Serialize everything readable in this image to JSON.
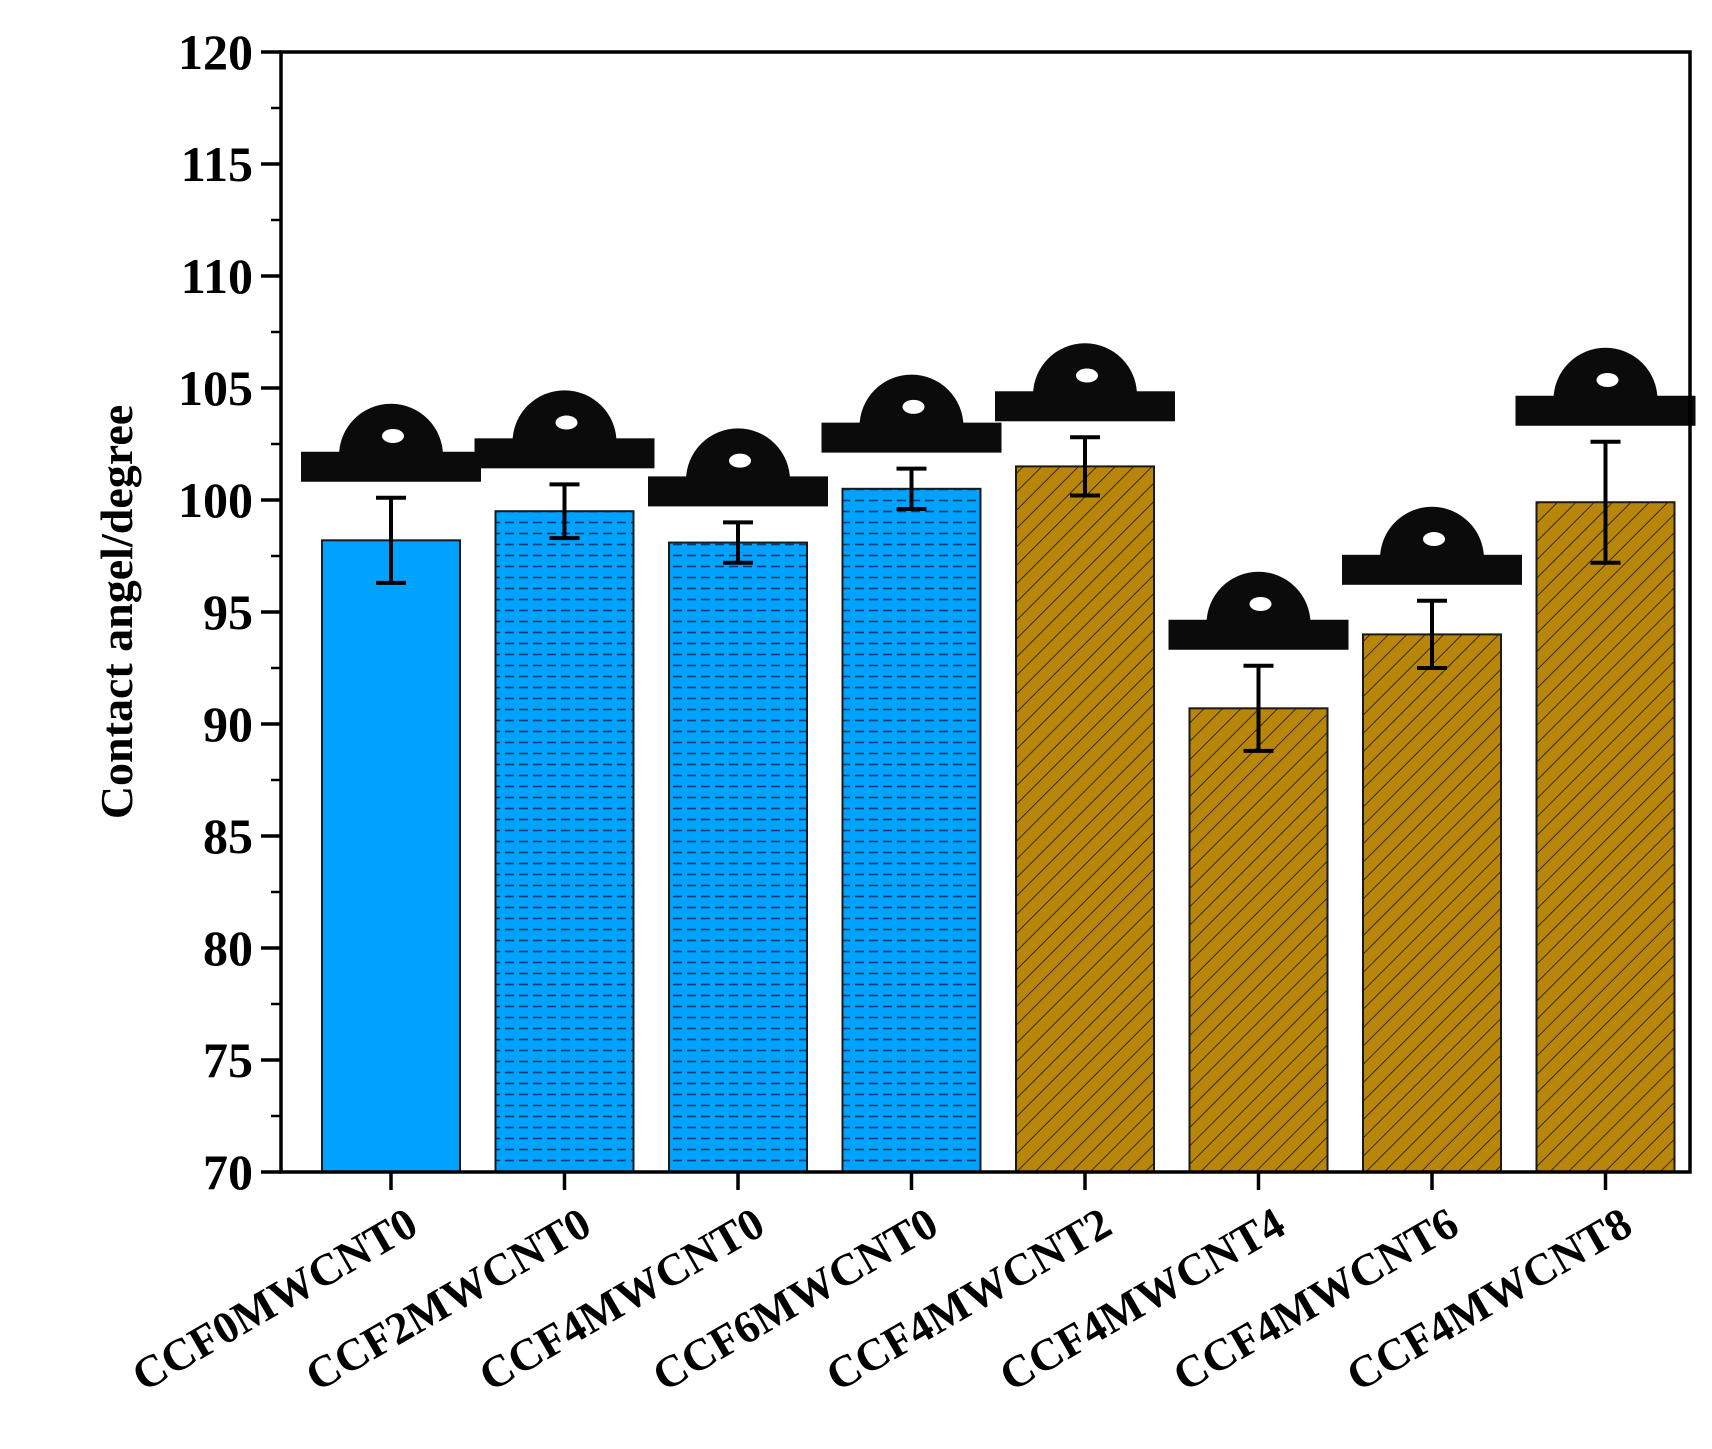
{
  "chart_data": {
    "type": "bar",
    "title": "",
    "xlabel": "",
    "ylabel": "Contact angel/degree",
    "ylim": [
      70,
      120
    ],
    "yticks": [
      70,
      75,
      80,
      85,
      90,
      95,
      100,
      105,
      110,
      115,
      120
    ],
    "grid": false,
    "legend": "none",
    "categories": [
      "CCF0MWCNT0",
      "CCF2MWCNT0",
      "CCF4MWCNT0",
      "CCF6MWCNT0",
      "CCF4MWCNT2",
      "CCF4MWCNT4",
      "CCF4MWCNT6",
      "CCF4MWCNT8"
    ],
    "values": [
      98.2,
      99.5,
      98.1,
      100.5,
      101.5,
      90.7,
      94.0,
      99.9
    ],
    "error": [
      1.9,
      1.2,
      0.9,
      0.9,
      1.3,
      1.9,
      1.5,
      2.7
    ],
    "fills": [
      "solid",
      "dash-pattern",
      "dash-pattern",
      "dash-pattern",
      "hatch",
      "hatch",
      "hatch",
      "hatch"
    ],
    "colors": {
      "blue": "#00a2ff",
      "brown": "#b8860b",
      "outline": "#1a1a1a"
    },
    "insets": "droplet photo above each bar"
  }
}
